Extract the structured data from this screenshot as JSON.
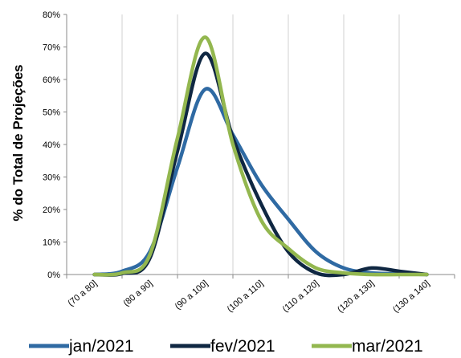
{
  "chart_data": {
    "type": "line",
    "title": "",
    "xlabel": "",
    "ylabel": "% do Total de Projeções",
    "categories": [
      "(70 a 80]",
      "(80 a 90]",
      "(90 a 100]",
      "(100 a 110]",
      "(110 a 120]",
      "(120 a 130]",
      "(130 a 140]"
    ],
    "yticks": [
      "0%",
      "10%",
      "20%",
      "30%",
      "40%",
      "50%",
      "60%",
      "70%",
      "80%"
    ],
    "ylim": [
      0,
      80
    ],
    "grid": "vertical",
    "legend_position": "bottom",
    "smooth": true,
    "series": [
      {
        "name": "jan/2021",
        "color": "#2f6aa3",
        "x": [
          0,
          0.5,
          1,
          1.5,
          2,
          2.5,
          3,
          3.5,
          4,
          4.5,
          5,
          5.5,
          6
        ],
        "values": [
          0,
          1,
          7,
          33,
          57,
          43,
          28,
          17,
          7,
          2,
          0.5,
          0.2,
          0
        ]
      },
      {
        "name": "fev/2021",
        "color": "#0f2742",
        "x": [
          0,
          0.5,
          1,
          1.5,
          2,
          2.5,
          3,
          3.5,
          4,
          4.5,
          5,
          5.5,
          6
        ],
        "values": [
          0,
          0.3,
          5,
          38,
          68,
          42,
          22,
          7,
          0.5,
          0,
          2,
          1,
          0
        ]
      },
      {
        "name": "mar/2021",
        "color": "#93b74f",
        "x": [
          0,
          0.5,
          1,
          1.5,
          2,
          2.5,
          3,
          3.5,
          4,
          4.5,
          5,
          5.5,
          6
        ],
        "values": [
          0,
          0.5,
          6,
          42,
          73,
          40,
          17,
          8,
          2,
          0.5,
          0,
          0,
          0
        ]
      }
    ]
  }
}
